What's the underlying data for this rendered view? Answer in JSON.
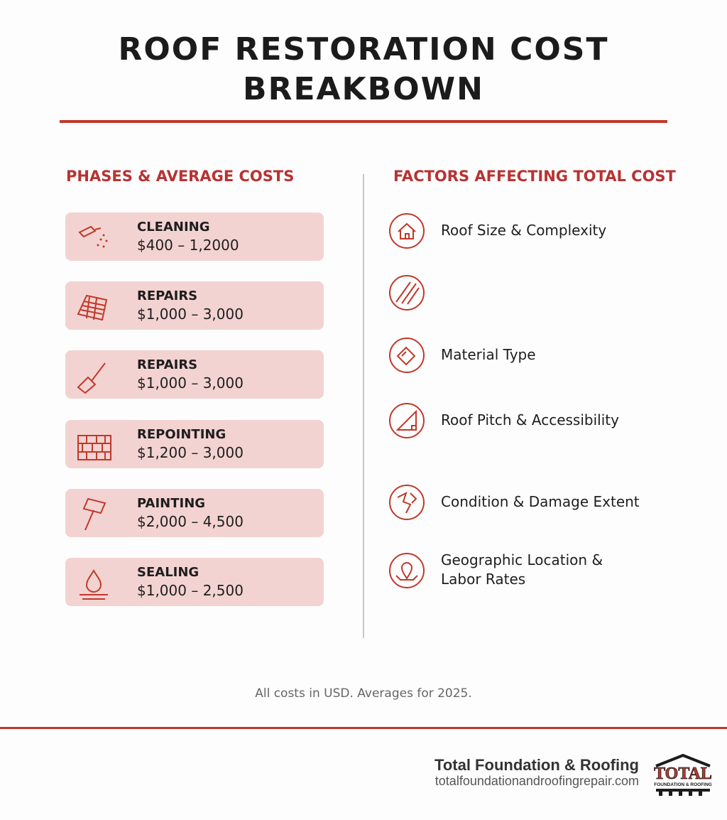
{
  "header": {
    "title": "ROOF RESTORATION COST BREAKBOWN"
  },
  "phases": {
    "heading": "PHASES & AVERAGE COSTS",
    "items": [
      {
        "name": "CLEANING",
        "cost": "$400 – 1,2000"
      },
      {
        "name": "REPAIRS",
        "cost": "$1,000 – 3,000"
      },
      {
        "name": "REPAIRS",
        "cost": "$1,000 – 3,000"
      },
      {
        "name": "REPOINTING",
        "cost": "$1,200 – 3,000"
      },
      {
        "name": "PAINTING",
        "cost": "$2,000 – 4,500"
      },
      {
        "name": "SEALING",
        "cost": "$1,000 – 2,500"
      }
    ]
  },
  "factors": {
    "heading": "FACTORS AFFECTING TOTAL COST",
    "items": [
      {
        "label": "Roof Size & Complexity"
      },
      {
        "label": "Material Type"
      },
      {
        "label": "Roof Pitch & Accessibility"
      },
      {
        "label": "Condition & Damage Extent"
      },
      {
        "label": "Geographic Location & Labor Rates"
      }
    ]
  },
  "footer": {
    "note": "All costs in USD. Averages for 2025.",
    "brand": "Total Foundation & Roofing",
    "url": "totalfoundationandroofingrepair.com",
    "logo": {
      "word": "TOTAL",
      "tagline": "FOUNDATION & ROOFING"
    }
  }
}
